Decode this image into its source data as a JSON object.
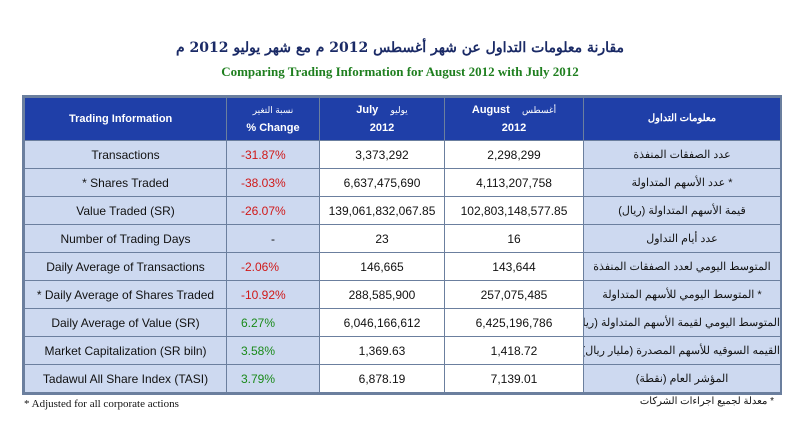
{
  "title_ar": "مقارنة معلومات التداول عن شهر أغسطس 2012 م مع شهر يوليو 2012 م",
  "title_en": "Comparing Trading Information for August 2012 with July 2012",
  "header": {
    "info": "Trading Information",
    "change_ar": "نسبة التغير",
    "change_en": "% Change",
    "july_ar": "يوليو",
    "july_en": "July",
    "july_year": "2012",
    "aug_ar": "أغسطس",
    "aug_en": "August",
    "aug_year": "2012",
    "info_ar": "معلومات التداول"
  },
  "rows": [
    {
      "label": "Transactions",
      "change": "-31.87%",
      "july": "3,373,292",
      "august": "2,298,299",
      "label_ar": "عدد الصفقات المنفذة",
      "sign": "neg"
    },
    {
      "label": "* Shares Traded",
      "change": "-38.03%",
      "july": "6,637,475,690",
      "august": "4,113,207,758",
      "label_ar": "* عدد الأسهم المتداولة",
      "sign": "neg"
    },
    {
      "label": "Value Traded (SR)",
      "change": "-26.07%",
      "july": "139,061,832,067.85",
      "august": "102,803,148,577.85",
      "label_ar": "قيمة الأسهم المتداولة (ريال)",
      "sign": "neg"
    },
    {
      "label": "Number of Trading Days",
      "change": "-",
      "july": "23",
      "august": "16",
      "label_ar": "عدد أيام التداول",
      "sign": "neu"
    },
    {
      "label": "Daily Average of Transactions",
      "change": "-2.06%",
      "july": "146,665",
      "august": "143,644",
      "label_ar": "المتوسط اليومي لعدد الصفقات المنفذة",
      "sign": "neg"
    },
    {
      "label": "* Daily Average of Shares Traded",
      "change": "-10.92%",
      "july": "288,585,900",
      "august": "257,075,485",
      "label_ar": "* المتوسط اليومي للأسهم المتداولة",
      "sign": "neg"
    },
    {
      "label": "Daily Average of Value (SR)",
      "change": "6.27%",
      "july": "6,046,166,612",
      "august": "6,425,196,786",
      "label_ar": "المتوسط اليومي لقيمة الأسهم المتداولة (ريال)",
      "sign": "pos"
    },
    {
      "label": "Market Capitalization (SR biln)",
      "change": "3.58%",
      "july": "1,369.63",
      "august": "1,418.72",
      "label_ar": "القيمه السوقيه للأسهم المصدرة (مليار ريال)",
      "sign": "pos"
    },
    {
      "label": "Tadawul All Share Index (TASI)",
      "change": "3.79%",
      "july": "6,878.19",
      "august": "7,139.01",
      "label_ar": "المؤشر العام (نقطة)",
      "sign": "pos"
    }
  ],
  "footnote_en": "* Adjusted for all corporate actions",
  "footnote_ar": "* معدلة لجميع اجراءات الشركات"
}
